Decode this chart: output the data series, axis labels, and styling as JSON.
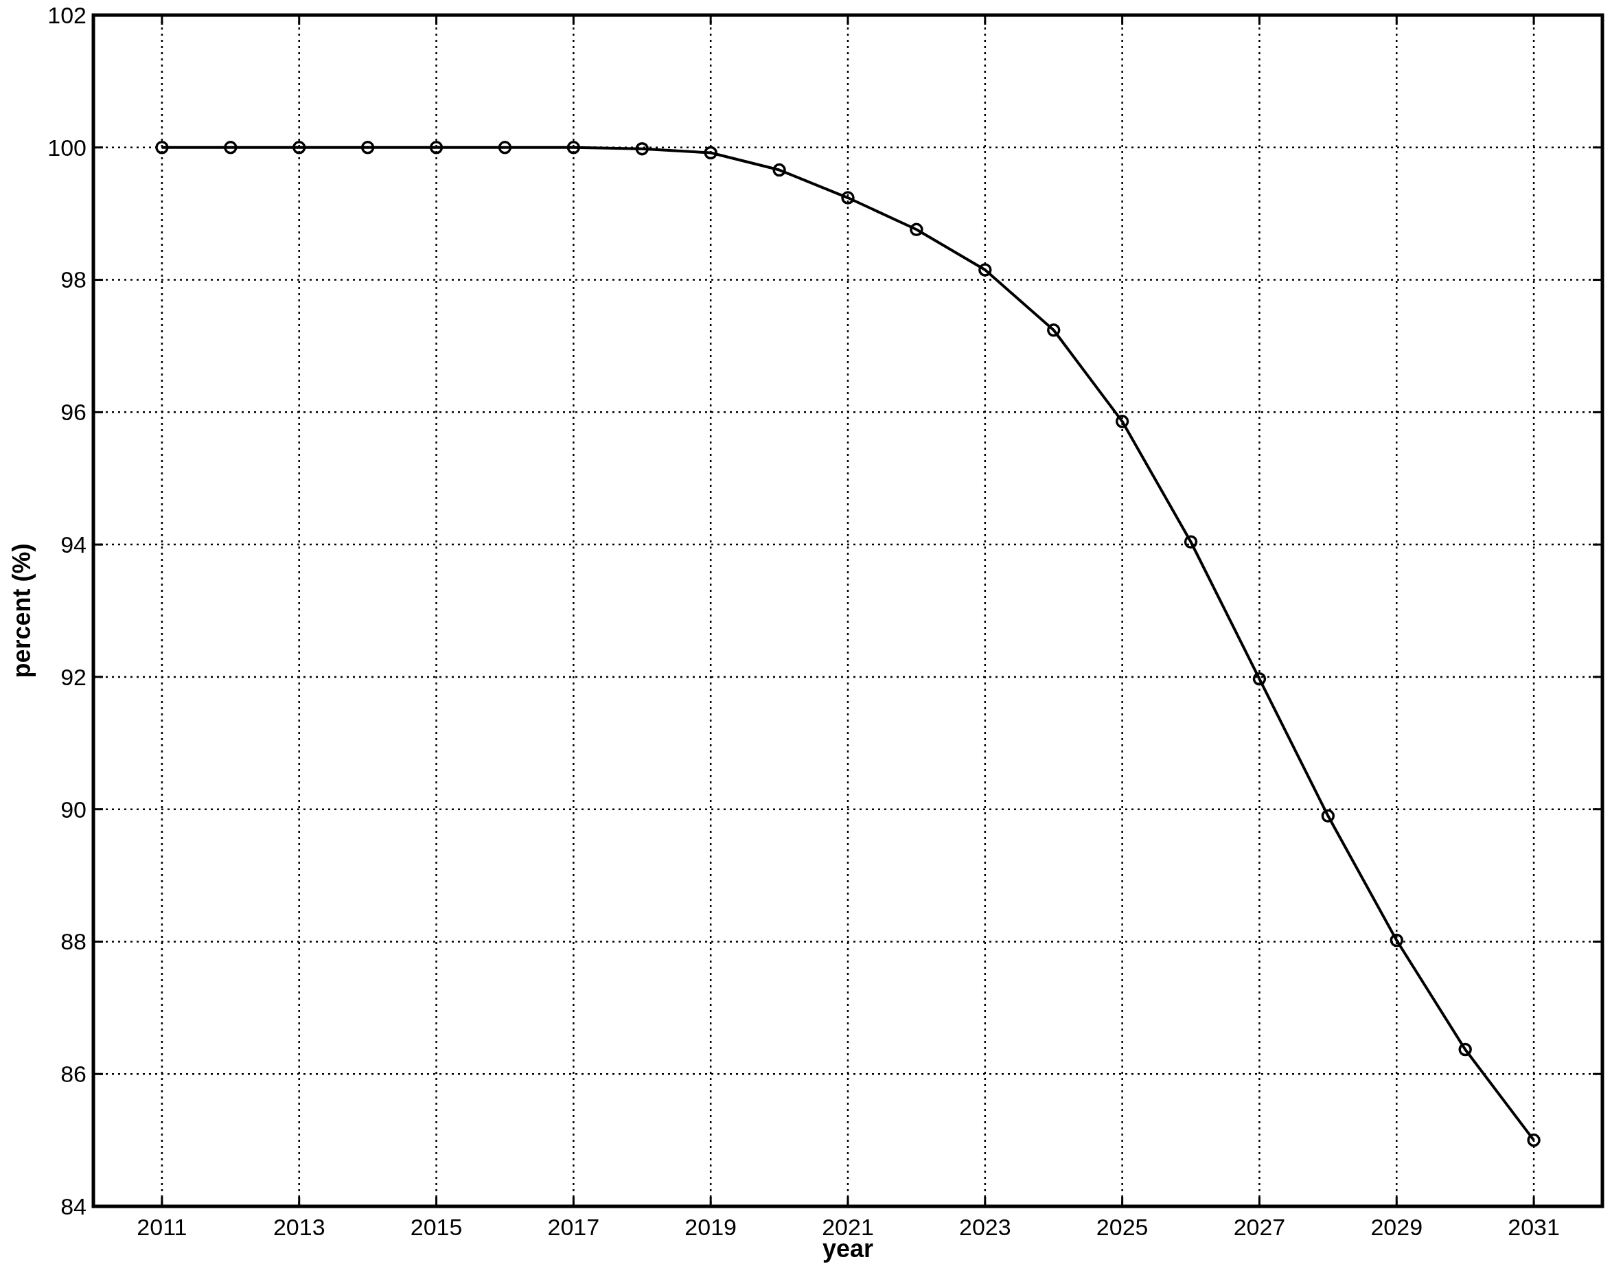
{
  "chart_data": {
    "type": "line",
    "xlabel": "year",
    "ylabel": "percent (%)",
    "x": [
      2011,
      2012,
      2013,
      2014,
      2015,
      2016,
      2017,
      2018,
      2019,
      2020,
      2021,
      2022,
      2023,
      2024,
      2025,
      2026,
      2027,
      2028,
      2029,
      2030,
      2031
    ],
    "series": [
      {
        "color": "#000000",
        "values": [
          100,
          100,
          100,
          100,
          100,
          100,
          100,
          99.98,
          99.92,
          99.66,
          99.24,
          98.76,
          98.15,
          97.24,
          95.86,
          94.04,
          91.97,
          89.9,
          88.02,
          86.37,
          85.0
        ]
      }
    ],
    "xlim": [
      2010,
      2032
    ],
    "xticks": [
      2011,
      2013,
      2015,
      2017,
      2019,
      2021,
      2023,
      2025,
      2027,
      2029,
      2031
    ],
    "ylim": [
      84,
      102
    ],
    "yticks": [
      84,
      86,
      88,
      90,
      92,
      94,
      96,
      98,
      100,
      102
    ],
    "grid": true,
    "marker": "circle",
    "line_style": "solid"
  }
}
